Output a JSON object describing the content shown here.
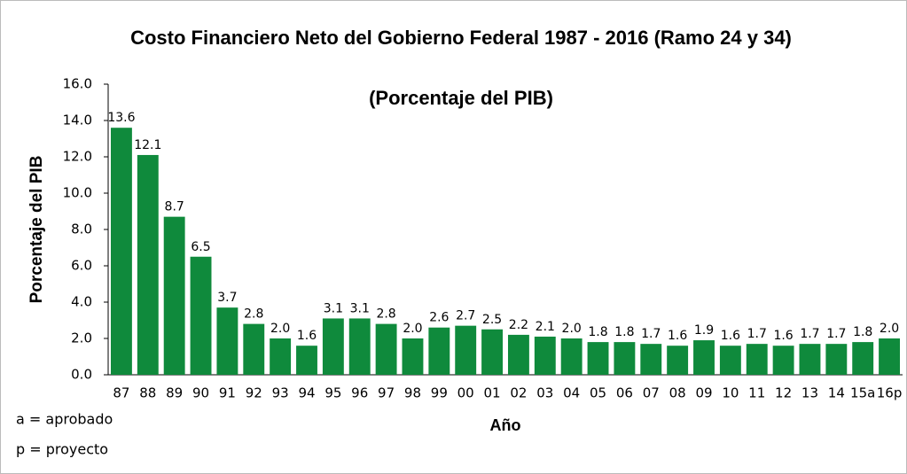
{
  "chart_data": {
    "type": "bar",
    "title": "Costo Financiero Neto del Gobierno Federal 1987 - 2016 (Ramo 24 y 34)",
    "subtitle": "(Porcentaje del PIB)",
    "y_label": "Porcentaje del PIB",
    "x_label": "Año",
    "notes": [
      "a = aprobado",
      "p = proyecto"
    ],
    "categories": [
      "87",
      "88",
      "89",
      "90",
      "91",
      "92",
      "93",
      "94",
      "95",
      "96",
      "97",
      "98",
      "99",
      "00",
      "01",
      "02",
      "03",
      "04",
      "05",
      "06",
      "07",
      "08",
      "09",
      "10",
      "11",
      "12",
      "13",
      "14",
      "15a",
      "16p"
    ],
    "values": [
      13.6,
      12.1,
      8.7,
      6.5,
      3.7,
      2.8,
      2.0,
      1.6,
      3.1,
      3.1,
      2.8,
      2.0,
      2.6,
      2.7,
      2.5,
      2.2,
      2.1,
      2.0,
      1.8,
      1.8,
      1.7,
      1.6,
      1.9,
      1.6,
      1.7,
      1.6,
      1.7,
      1.7,
      1.8,
      2.0
    ],
    "value_labels": [
      "13.6",
      "12.1",
      "8.7",
      "6.5",
      "3.7",
      "2.8",
      "2.0",
      "1.6",
      "3.1",
      "3.1",
      "2.8",
      "2.0",
      "2.6",
      "2.7",
      "2.5",
      "2.2",
      "2.1",
      "2.0",
      "1.8",
      "1.8",
      "1.7",
      "1.6",
      "1.9",
      "1.6",
      "1.7",
      "1.6",
      "1.7",
      "1.7",
      "1.8",
      "2.0"
    ],
    "color": "#0f8a3c",
    "ylim": [
      0,
      16
    ],
    "yticks": [
      {
        "value": 0,
        "label": "0.0"
      },
      {
        "value": 2,
        "label": "2.0"
      },
      {
        "value": 4,
        "label": "4.0"
      },
      {
        "value": 6,
        "label": "6.0"
      },
      {
        "value": 8,
        "label": "8.0"
      },
      {
        "value": 10,
        "label": "10.0"
      },
      {
        "value": 12,
        "label": "12.0"
      },
      {
        "value": 14,
        "label": "14.0"
      },
      {
        "value": 16,
        "label": "16.0"
      }
    ],
    "grid": false
  }
}
